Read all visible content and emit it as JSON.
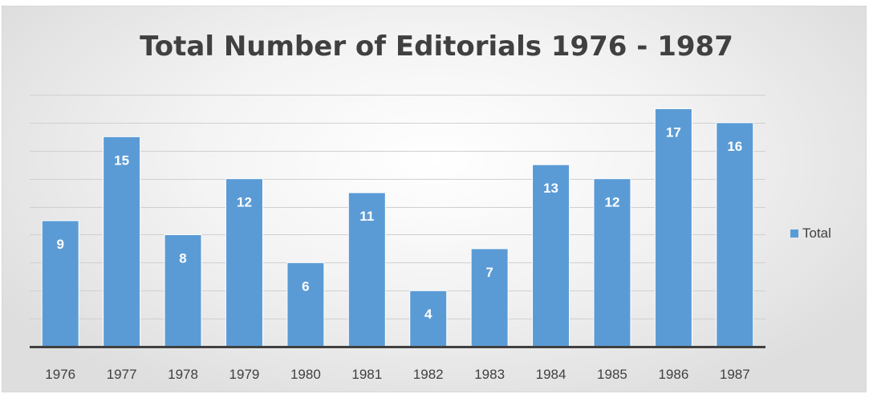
{
  "chart_data": {
    "type": "bar",
    "title": "Total Number of Editorials 1976 - 1987",
    "xlabel": "",
    "ylabel": "",
    "categories": [
      "1976",
      "1977",
      "1978",
      "1979",
      "1980",
      "1981",
      "1982",
      "1983",
      "1984",
      "1985",
      "1986",
      "1987"
    ],
    "series": [
      {
        "name": "Total",
        "values": [
          9,
          15,
          8,
          12,
          6,
          11,
          4,
          7,
          13,
          12,
          17,
          16
        ],
        "color": "#5b9bd5"
      }
    ],
    "ylim": [
      0,
      18
    ],
    "grid": true,
    "data_labels": true,
    "legend_position": "right"
  }
}
